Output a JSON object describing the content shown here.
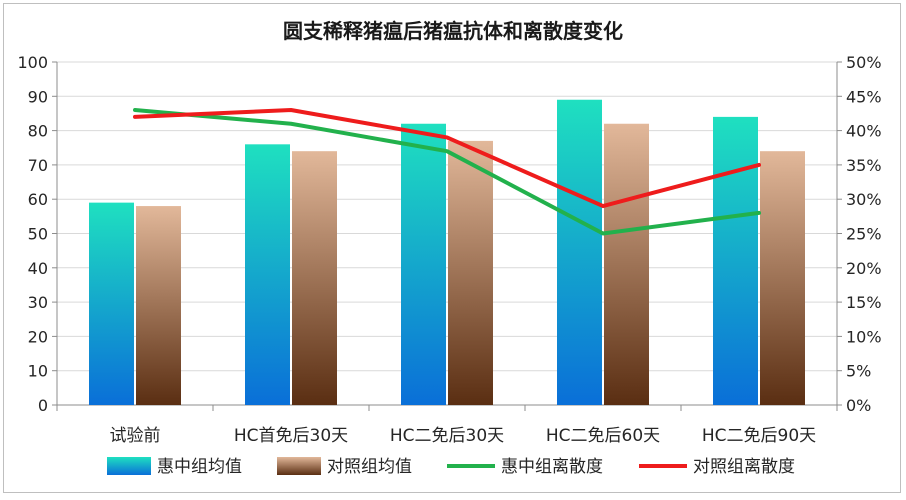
{
  "chart_data": {
    "type": "bar+line",
    "title": "圆支稀释猪瘟后猪瘟抗体和离散度变化",
    "categories": [
      "试验前",
      "HC首免后30天",
      "HC二免后30天",
      "HC二免后60天",
      "HC二免后90天"
    ],
    "left_axis": {
      "ylim": [
        0,
        100
      ],
      "ticks": [
        "0",
        "10",
        "20",
        "30",
        "40",
        "50",
        "60",
        "70",
        "80",
        "90",
        "100"
      ]
    },
    "right_axis": {
      "ylim": [
        0,
        50
      ],
      "ticks": [
        "0%",
        "5%",
        "10%",
        "15%",
        "20%",
        "25%",
        "30%",
        "35%",
        "40%",
        "45%",
        "50%"
      ]
    },
    "bar_series": [
      {
        "name": "惠中组均值",
        "values": [
          59,
          76,
          82,
          89,
          84
        ],
        "colors": [
          "#1fe0c0",
          "#0a6fd8"
        ]
      },
      {
        "name": "对照组均值",
        "values": [
          58,
          74,
          77,
          82,
          74
        ],
        "colors": [
          "#e2b89a",
          "#5a2e12"
        ]
      }
    ],
    "line_series": [
      {
        "name": "惠中组离散度",
        "values": [
          43,
          41,
          37,
          25,
          28
        ],
        "unit": "%",
        "color": "#22b14c"
      },
      {
        "name": "对照组离散度",
        "values": [
          42,
          43,
          39,
          29,
          35
        ],
        "unit": "%",
        "color": "#ee1c1c"
      }
    ],
    "grid": true,
    "legend_position": "bottom"
  }
}
